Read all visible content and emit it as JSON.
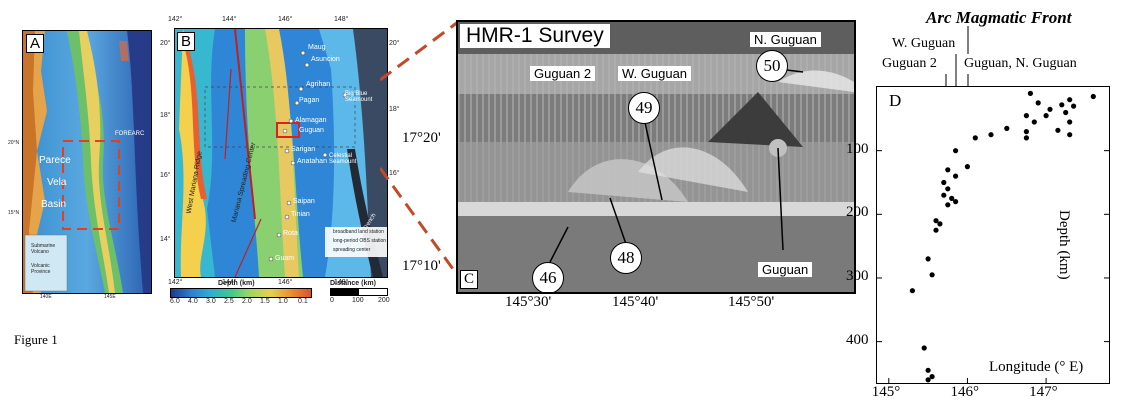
{
  "figure_caption": "Figure 1",
  "panel_a": {
    "letter": "A",
    "labels": {
      "parece": "Parece",
      "vela": "Vela",
      "basin": "Basin",
      "forearc": "FOREARC"
    },
    "lat_ticks": [
      "20°N",
      "15°N"
    ],
    "lon_ticks": [
      "140E",
      "145E"
    ],
    "legend": [
      "Submarine Volcano",
      "Volcanic Province"
    ]
  },
  "panel_b": {
    "letter": "B",
    "top_ticks": [
      "142°",
      "144°",
      "146°",
      "148°"
    ],
    "bottom_ticks": [
      "142°",
      "144°",
      "146°",
      "148°"
    ],
    "left_ticks": [
      "20°",
      "18°",
      "16°",
      "14°"
    ],
    "right_ticks": [
      "20°",
      "18°",
      "16°"
    ],
    "islands": [
      "Maug",
      "Asuncion",
      "Agrihan",
      "Pagan",
      "Alamagan",
      "Guguan",
      "Sarigan",
      "Anatahan",
      "Saipan",
      "Tinian",
      "Rota",
      "Guam"
    ],
    "features": [
      "West Mariana Ridge",
      "Mariana Spreading Center",
      "Mariana Trench",
      "Big Blue Seamount",
      "Celestial Seamount"
    ],
    "legend": [
      "broadband land station",
      "long-period OBS station",
      "spreading center"
    ],
    "depth_bar": {
      "title": "Depth (km)",
      "ticks": [
        "6.0",
        "4.0",
        "3.0",
        "2.5",
        "2.0",
        "1.5",
        "1.0",
        "0.1"
      ]
    },
    "distance_bar": {
      "title": "Distance (km)",
      "ticks": [
        "0",
        "100",
        "200"
      ]
    }
  },
  "panel_c": {
    "letter": "C",
    "title": "HMR-1 Survey",
    "labels": {
      "guguan2": "Guguan 2",
      "wguguan": "W. Guguan",
      "nguguan": "N. Guguan",
      "guguan": "Guguan"
    },
    "bubbles": [
      "50",
      "49",
      "48",
      "46"
    ],
    "y_ticks": [
      "17°20'",
      "17°10'"
    ],
    "x_ticks": [
      "145°30'",
      "145°40'",
      "145°50'"
    ]
  },
  "panel_d": {
    "letter": "D",
    "title": "Arc Magmatic Front",
    "top_labels": {
      "wguguan": "W. Guguan",
      "guguan2": "Guguan 2",
      "guguan_n": "Guguan, N. Guguan"
    },
    "x_label": "Longitude (° E)",
    "y_label": "Depth (km)"
  },
  "chart_data": {
    "type": "scatter",
    "title": "Arc Magmatic Front",
    "xlabel": "Longitude (° E)",
    "ylabel": "Depth (km)",
    "xlim": [
      144.85,
      147.8
    ],
    "ylim": [
      465,
      0
    ],
    "x_ticks": [
      145,
      146,
      147
    ],
    "x_tick_labels": [
      "145°",
      "146°",
      "147°"
    ],
    "y_ticks": [
      100,
      200,
      300,
      400
    ],
    "y_tick_labels": [
      "100",
      "200",
      "300",
      "400"
    ],
    "points": [
      [
        146.8,
        10
      ],
      [
        147.6,
        15
      ],
      [
        147.3,
        20
      ],
      [
        146.9,
        25
      ],
      [
        147.2,
        28
      ],
      [
        147.35,
        30
      ],
      [
        147.05,
        35
      ],
      [
        147.25,
        40
      ],
      [
        146.75,
        45
      ],
      [
        147.0,
        45
      ],
      [
        146.85,
        55
      ],
      [
        147.3,
        55
      ],
      [
        146.5,
        65
      ],
      [
        147.15,
        68
      ],
      [
        146.75,
        70
      ],
      [
        147.3,
        75
      ],
      [
        146.3,
        75
      ],
      [
        146.1,
        80
      ],
      [
        146.75,
        80
      ],
      [
        145.85,
        100
      ],
      [
        146.0,
        125
      ],
      [
        145.75,
        130
      ],
      [
        145.85,
        140
      ],
      [
        145.7,
        150
      ],
      [
        145.75,
        160
      ],
      [
        145.7,
        170
      ],
      [
        145.8,
        175
      ],
      [
        145.85,
        180
      ],
      [
        145.75,
        185
      ],
      [
        145.6,
        210
      ],
      [
        145.65,
        215
      ],
      [
        145.6,
        225
      ],
      [
        145.5,
        270
      ],
      [
        145.55,
        295
      ],
      [
        145.3,
        320
      ],
      [
        145.45,
        410
      ],
      [
        145.5,
        445
      ],
      [
        145.55,
        455
      ],
      [
        145.5,
        460
      ]
    ]
  }
}
